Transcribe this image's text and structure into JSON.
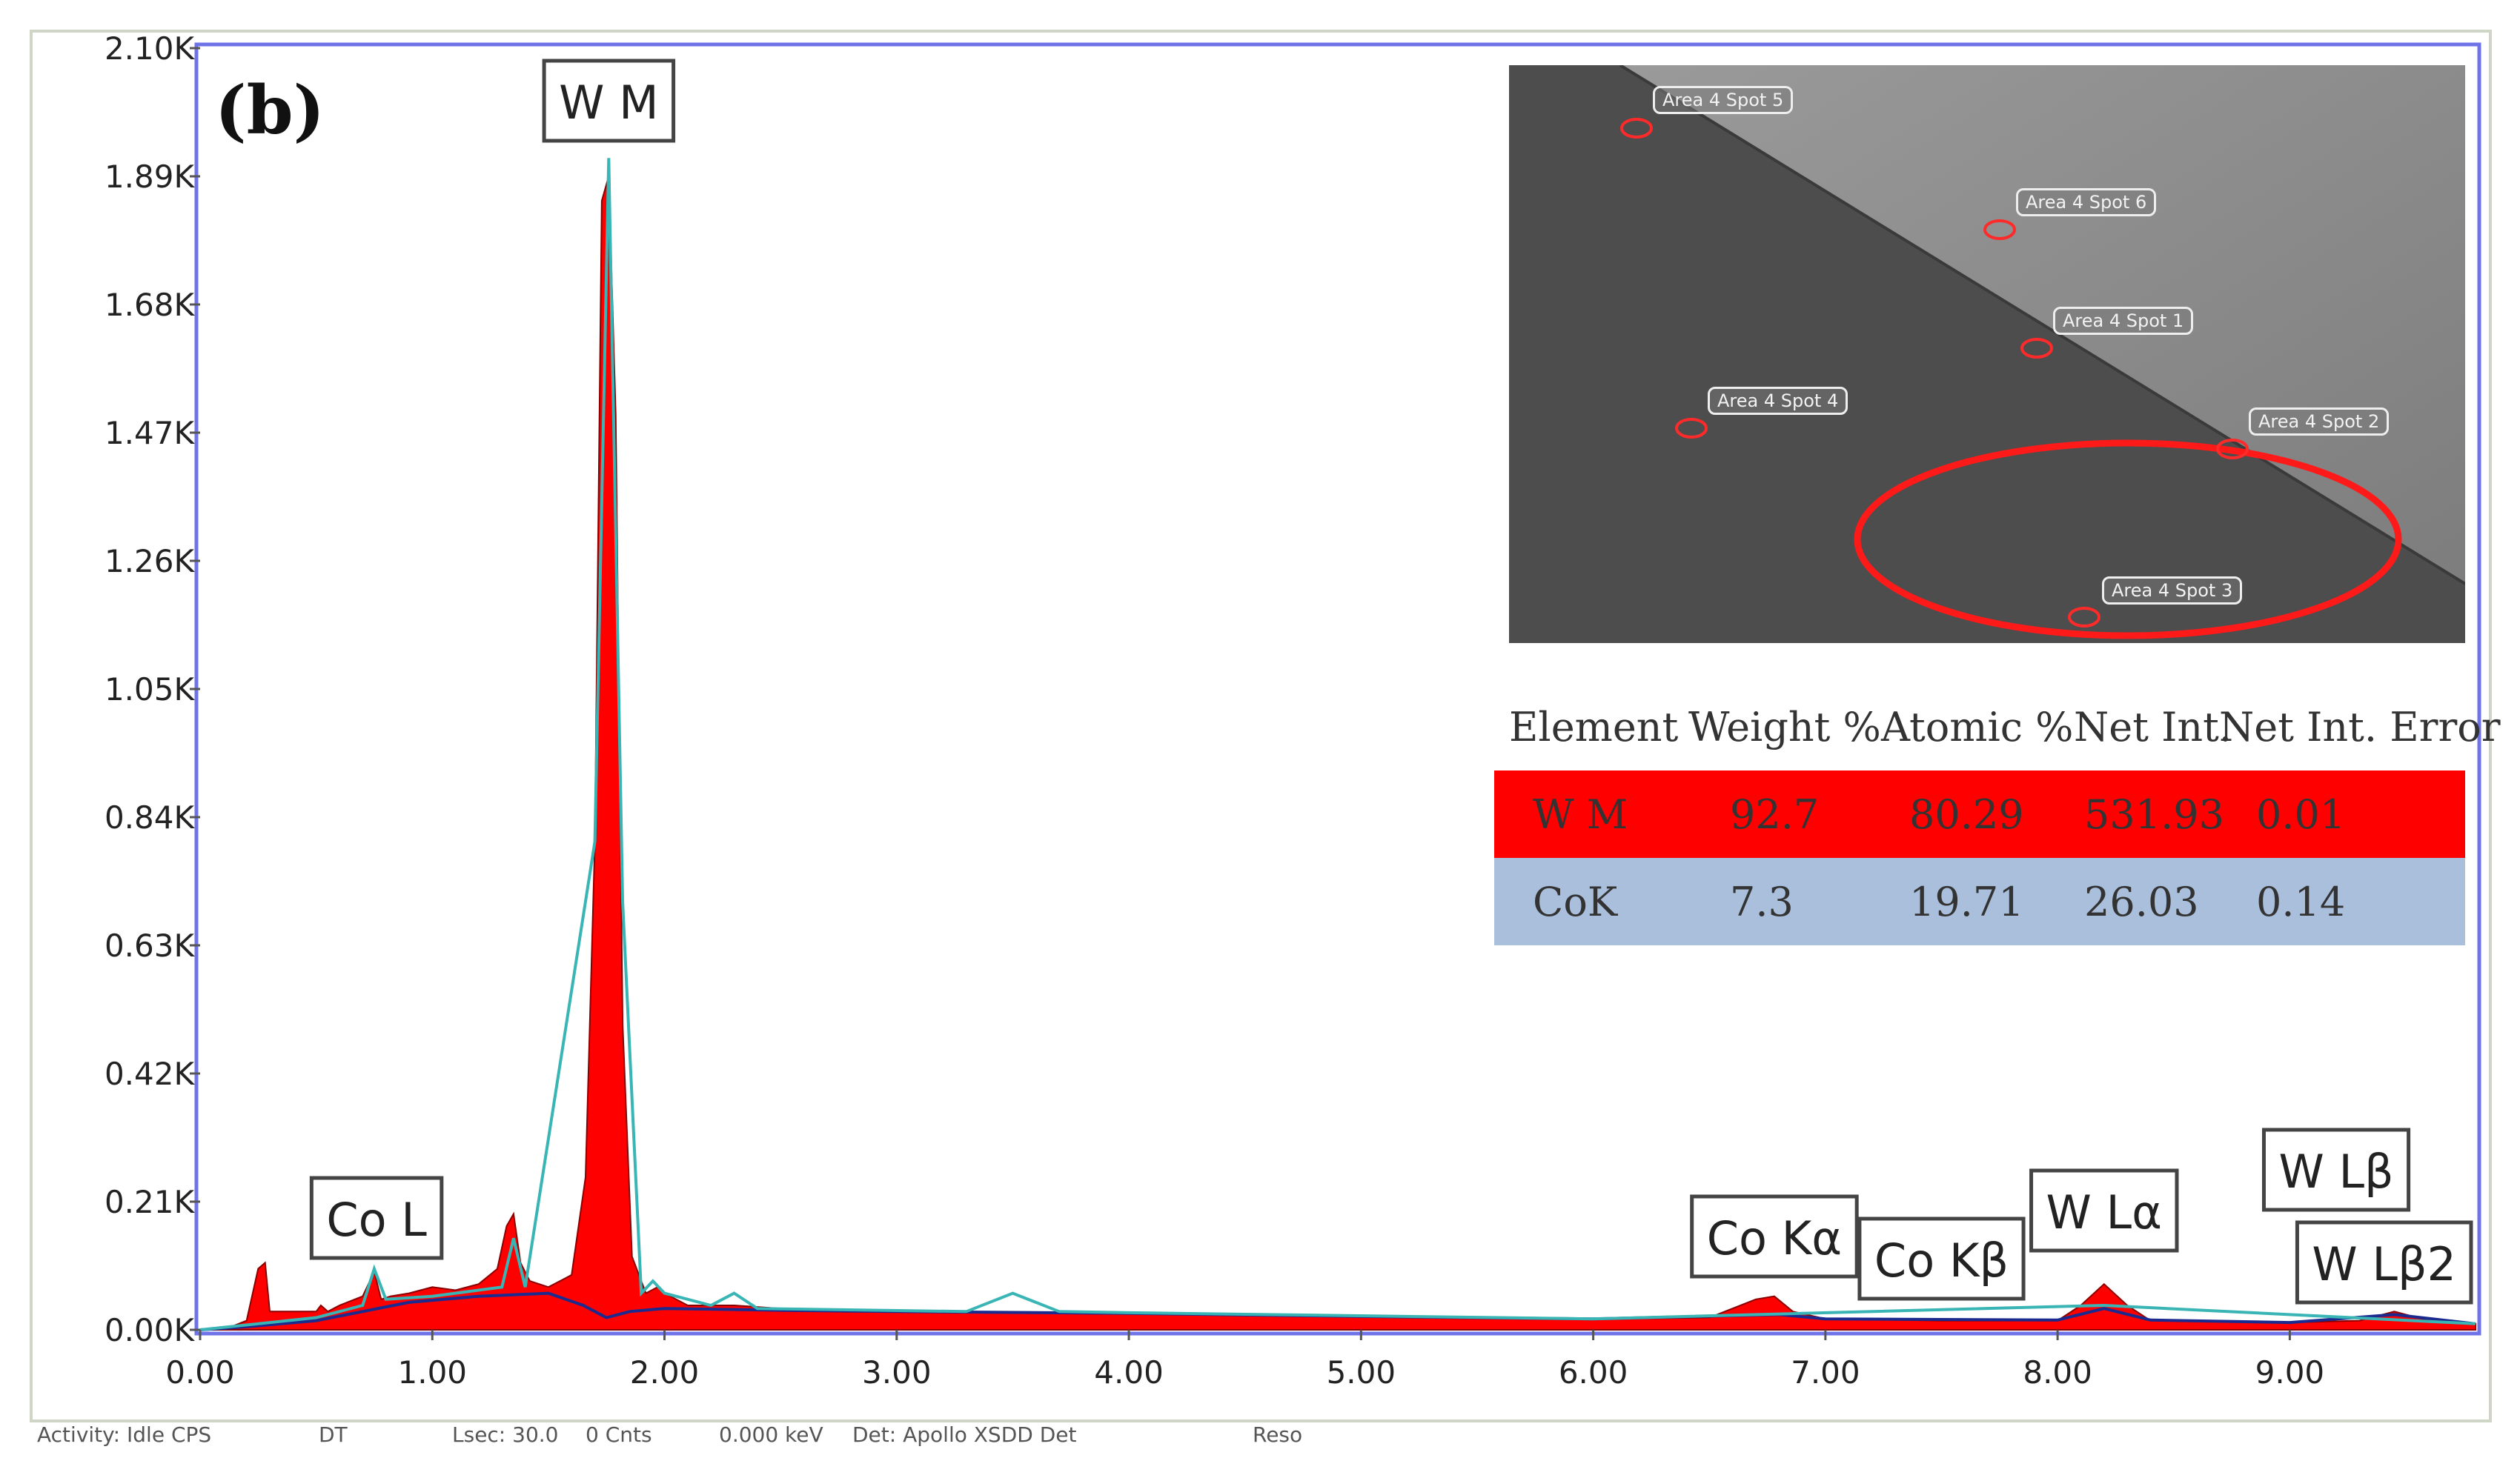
{
  "panel_label": "(b)",
  "chart_data": {
    "type": "line",
    "title": "",
    "xlabel": "",
    "ylabel": "",
    "x_ticks": [
      0.0,
      1.0,
      2.0,
      3.0,
      4.0,
      5.0,
      6.0,
      7.0,
      8.0,
      9.0
    ],
    "x_tick_labels": [
      "0.00",
      "1.00",
      "2.00",
      "3.00",
      "4.00",
      "5.00",
      "6.00",
      "7.00",
      "8.00",
      "9.00"
    ],
    "y_ticks": [
      0,
      210,
      420,
      630,
      840,
      1050,
      1260,
      1470,
      1680,
      1890,
      2100
    ],
    "y_tick_labels": [
      "0.00K",
      "0.21K",
      "0.42K",
      "0.63K",
      "0.84K",
      "1.05K",
      "1.26K",
      "1.47K",
      "1.68K",
      "1.89K",
      "2.10K"
    ],
    "xlim": [
      0.0,
      9.8
    ],
    "ylim": [
      0,
      2100
    ],
    "grid": false,
    "series": [
      {
        "name": "",
        "color": "#ff0000",
        "style": "filled",
        "x": [
          0.0,
          0.1,
          0.2,
          0.25,
          0.28,
          0.3,
          0.35,
          0.45,
          0.5,
          0.52,
          0.55,
          0.6,
          0.7,
          0.75,
          0.78,
          0.82,
          0.9,
          1.0,
          1.1,
          1.2,
          1.28,
          1.32,
          1.35,
          1.38,
          1.42,
          1.5,
          1.6,
          1.66,
          1.7,
          1.73,
          1.76,
          1.79,
          1.82,
          1.86,
          1.92,
          1.97,
          2.0,
          2.05,
          2.1,
          2.3,
          2.5,
          3.0,
          3.5,
          4.0,
          5.0,
          6.0,
          6.5,
          6.7,
          6.78,
          6.86,
          7.0,
          7.5,
          8.0,
          8.1,
          8.2,
          8.3,
          8.4,
          9.0,
          9.3,
          9.45,
          9.6,
          9.8
        ],
        "y": [
          0,
          0,
          15,
          100,
          110,
          30,
          30,
          30,
          30,
          40,
          30,
          40,
          55,
          95,
          50,
          55,
          60,
          70,
          65,
          75,
          100,
          170,
          190,
          110,
          80,
          70,
          90,
          250,
          800,
          1850,
          1890,
          1500,
          500,
          120,
          60,
          70,
          60,
          50,
          40,
          40,
          35,
          30,
          28,
          26,
          22,
          18,
          20,
          50,
          55,
          30,
          18,
          15,
          15,
          40,
          75,
          40,
          15,
          12,
          15,
          30,
          15,
          10
        ]
      },
      {
        "name": "",
        "color": "#1b2a8f",
        "style": "line",
        "x": [
          0.0,
          0.2,
          0.5,
          0.7,
          0.9,
          1.2,
          1.5,
          1.65,
          1.75,
          1.85,
          2.0,
          2.5,
          3.0,
          4.0,
          5.0,
          6.0,
          6.8,
          7.0,
          8.0,
          8.2,
          8.4,
          9.0,
          9.45,
          9.8
        ],
        "y": [
          0,
          5,
          15,
          30,
          45,
          55,
          60,
          40,
          20,
          30,
          35,
          32,
          30,
          27,
          22,
          18,
          25,
          18,
          16,
          35,
          16,
          12,
          25,
          10
        ]
      },
      {
        "name": "",
        "color": "#39b5b5",
        "style": "line",
        "x": [
          0.0,
          0.5,
          0.7,
          0.75,
          0.8,
          1.0,
          1.3,
          1.35,
          1.4,
          1.7,
          1.76,
          1.82,
          1.9,
          1.95,
          2.0,
          2.2,
          2.3,
          2.4,
          3.3,
          3.5,
          3.7,
          4.0,
          6.0,
          8.2,
          9.8
        ],
        "y": [
          0,
          20,
          40,
          100,
          50,
          55,
          70,
          150,
          70,
          800,
          1920,
          700,
          60,
          80,
          60,
          40,
          60,
          35,
          30,
          60,
          30,
          28,
          18,
          40,
          10
        ]
      }
    ],
    "annotations": [
      {
        "text": "W  M",
        "x": 1.76
      },
      {
        "text": "Co L",
        "x": 0.76
      },
      {
        "text": "Co Kα",
        "x": 6.78
      },
      {
        "text": "Co Kβ",
        "x": 7.5
      },
      {
        "text": "W  Lα",
        "x": 8.2
      },
      {
        "text": "W  Lβ",
        "x": 9.2
      },
      {
        "text": "W  Lβ2",
        "x": 9.45
      }
    ]
  },
  "inset_image": {
    "spot_labels": [
      "Area 4 Spot 5",
      "Area 4 Spot 6",
      "Area 4 Spot 1",
      "Area 4 Spot 4",
      "Area 4 Spot 2",
      "Area 4 Spot 3"
    ]
  },
  "results_table": {
    "headers": [
      "Element",
      "Weight %",
      "Atomic %",
      "Net Int.",
      "Net Int. Error"
    ],
    "rows": [
      {
        "cells": [
          "W M",
          "92.7",
          "80.29",
          "531.93",
          "0.01"
        ],
        "bg": "#ff0000"
      },
      {
        "cells": [
          "CoK",
          "7.3",
          "19.71",
          "26.03",
          "0.14"
        ],
        "bg": "#a9bfdc"
      }
    ]
  },
  "status_bar": {
    "items": [
      "Activity: Idle CPS",
      "DT",
      "Lsec: 30.0",
      "0 Cnts",
      "0.000 keV",
      "Det: Apollo XSDD Det",
      "Reso"
    ]
  }
}
